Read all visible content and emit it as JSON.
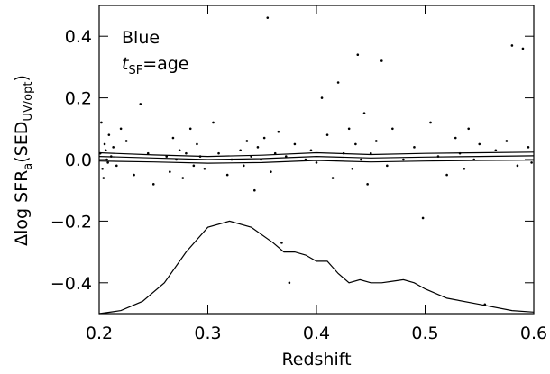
{
  "chart_data": {
    "type": "scatter",
    "xlabel": "Redshift",
    "ylabel": {
      "main": "Δlog SFR",
      "sub1": "a",
      "mid": "(SED",
      "sub2": "UV/opt",
      "end": ")"
    },
    "annotation": {
      "line1": "Blue",
      "t": "t",
      "sub": "SF",
      "rest": "=age"
    },
    "xlim": [
      0.2,
      0.6
    ],
    "ylim": [
      -0.5,
      0.5
    ],
    "xticks": [
      0.2,
      0.3,
      0.4,
      0.5,
      0.6
    ],
    "yticks": [
      {
        "value": -0.4,
        "label": "−0.4"
      },
      {
        "value": -0.2,
        "label": "−0.2"
      },
      {
        "value": 0,
        "label": "0.0"
      },
      0.2,
      0.4
    ],
    "series": [
      {
        "style": "points",
        "color": "#000000",
        "x": [
          0.201,
          0.203,
          0.205,
          0.207,
          0.209,
          0.204,
          0.206,
          0.202,
          0.208,
          0.211,
          0.213,
          0.216,
          0.22,
          0.225,
          0.232,
          0.238,
          0.245,
          0.25,
          0.262,
          0.265,
          0.268,
          0.271,
          0.274,
          0.277,
          0.28,
          0.284,
          0.287,
          0.29,
          0.293,
          0.297,
          0.305,
          0.31,
          0.318,
          0.322,
          0.33,
          0.333,
          0.336,
          0.34,
          0.343,
          0.346,
          0.349,
          0.352,
          0.355,
          0.358,
          0.362,
          0.365,
          0.368,
          0.372,
          0.375,
          0.38,
          0.39,
          0.395,
          0.4,
          0.405,
          0.41,
          0.415,
          0.42,
          0.425,
          0.43,
          0.433,
          0.436,
          0.438,
          0.441,
          0.444,
          0.447,
          0.45,
          0.455,
          0.46,
          0.465,
          0.47,
          0.48,
          0.49,
          0.498,
          0.505,
          0.512,
          0.52,
          0.528,
          0.532,
          0.536,
          0.54,
          0.545,
          0.55,
          0.555,
          0.565,
          0.575,
          0.58,
          0.585,
          0.59,
          0.595,
          0.598
        ],
        "values": [
          0.02,
          -0.03,
          0.05,
          0.0,
          0.08,
          -0.06,
          0.03,
          0.12,
          -0.01,
          0.01,
          0.04,
          -0.02,
          0.1,
          0.06,
          -0.05,
          0.18,
          0.02,
          -0.08,
          0.01,
          -0.04,
          0.07,
          0.0,
          0.03,
          -0.06,
          0.02,
          0.1,
          -0.02,
          0.05,
          0.01,
          -0.03,
          0.12,
          0.02,
          -0.05,
          0.0,
          0.03,
          -0.02,
          0.06,
          0.01,
          -0.1,
          0.04,
          0.0,
          0.07,
          0.46,
          -0.04,
          0.02,
          0.09,
          -0.27,
          0.01,
          -0.4,
          0.05,
          0.0,
          0.03,
          -0.01,
          0.2,
          0.08,
          -0.06,
          0.25,
          0.02,
          0.1,
          -0.03,
          0.05,
          0.34,
          0.0,
          0.15,
          -0.08,
          0.02,
          0.06,
          0.32,
          -0.02,
          0.1,
          0.0,
          0.04,
          -0.19,
          0.12,
          0.01,
          -0.05,
          0.07,
          0.02,
          -0.03,
          0.1,
          0.0,
          0.05,
          -0.47,
          0.03,
          0.06,
          0.37,
          -0.02,
          0.36,
          0.04,
          -0.01
        ]
      },
      {
        "style": "line",
        "color": "#000000",
        "x": [
          0.2,
          0.25,
          0.3,
          0.35,
          0.4,
          0.45,
          0.5,
          0.55,
          0.6
        ],
        "values": [
          0.01,
          0.005,
          0.0,
          0.003,
          0.01,
          0.005,
          0.008,
          0.01,
          0.012
        ]
      },
      {
        "style": "line",
        "color": "#000000",
        "x": [
          0.2,
          0.25,
          0.3,
          0.35,
          0.4,
          0.45,
          0.5,
          0.55,
          0.6
        ],
        "values": [
          0.022,
          0.015,
          0.01,
          0.014,
          0.022,
          0.016,
          0.02,
          0.022,
          0.024
        ]
      },
      {
        "style": "line",
        "color": "#000000",
        "x": [
          0.2,
          0.25,
          0.3,
          0.35,
          0.4,
          0.45,
          0.5,
          0.55,
          0.6
        ],
        "values": [
          -0.005,
          -0.008,
          -0.012,
          -0.01,
          -0.003,
          -0.008,
          -0.005,
          -0.003,
          -0.002
        ]
      },
      {
        "style": "line",
        "color": "#000000",
        "x": [
          0.2,
          0.22,
          0.24,
          0.26,
          0.28,
          0.3,
          0.32,
          0.34,
          0.36,
          0.37,
          0.38,
          0.39,
          0.4,
          0.41,
          0.42,
          0.43,
          0.44,
          0.45,
          0.46,
          0.47,
          0.48,
          0.49,
          0.5,
          0.52,
          0.55,
          0.58,
          0.6
        ],
        "values": [
          -0.5,
          -0.49,
          -0.46,
          -0.4,
          -0.3,
          -0.22,
          -0.2,
          -0.22,
          -0.27,
          -0.3,
          -0.3,
          -0.31,
          -0.33,
          -0.33,
          -0.37,
          -0.4,
          -0.39,
          -0.4,
          -0.4,
          -0.395,
          -0.39,
          -0.4,
          -0.42,
          -0.45,
          -0.47,
          -0.49,
          -0.495
        ]
      }
    ]
  }
}
